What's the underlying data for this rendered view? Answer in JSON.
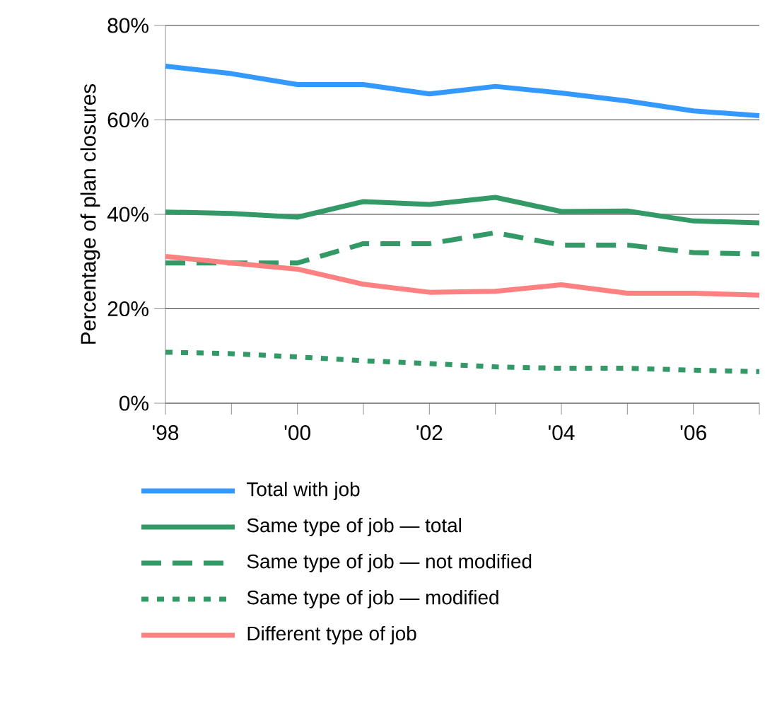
{
  "chart_data": {
    "type": "line",
    "ylabel": "Percentage of plan closures",
    "x": [
      1998,
      1999,
      2000,
      2001,
      2002,
      2003,
      2004,
      2005,
      2006,
      2007
    ],
    "series": [
      {
        "name": "Total with job",
        "color": "#3399ff",
        "line_style": "solid",
        "values": [
          71.4,
          69.8,
          67.5,
          67.5,
          65.5,
          67.1,
          65.7,
          64.0,
          61.9,
          60.9
        ]
      },
      {
        "name": "Same type of job — total",
        "color": "#339966",
        "line_style": "solid",
        "values": [
          40.5,
          40.2,
          39.4,
          42.7,
          42.1,
          43.6,
          40.6,
          40.7,
          38.6,
          38.2
        ]
      },
      {
        "name": "Same type of job — not modified",
        "color": "#339966",
        "line_style": "dashed",
        "values": [
          29.7,
          29.7,
          29.7,
          33.8,
          33.8,
          36.1,
          33.5,
          33.5,
          31.9,
          31.6
        ]
      },
      {
        "name": "Same type of job — modified",
        "color": "#339966",
        "line_style": "dotted",
        "values": [
          10.8,
          10.5,
          9.8,
          9.0,
          8.4,
          7.7,
          7.4,
          7.4,
          7.0,
          6.7
        ]
      },
      {
        "name": "Different type of job",
        "color": "#ff8080",
        "line_style": "solid",
        "values": [
          31.1,
          29.7,
          28.4,
          25.2,
          23.5,
          23.7,
          25.1,
          23.3,
          23.3,
          22.9
        ]
      }
    ],
    "xlim": [
      1998,
      2007
    ],
    "ylim": [
      0,
      80
    ],
    "xticks": [
      {
        "value": 1998,
        "label": "'98"
      },
      {
        "value": 1999,
        "label": null
      },
      {
        "value": 2000,
        "label": "'00"
      },
      {
        "value": 2001,
        "label": null
      },
      {
        "value": 2002,
        "label": "'02"
      },
      {
        "value": 2003,
        "label": null
      },
      {
        "value": 2004,
        "label": "'04"
      },
      {
        "value": 2005,
        "label": null
      },
      {
        "value": 2006,
        "label": "'06"
      },
      {
        "value": 2007,
        "label": null
      }
    ],
    "yticks": [
      {
        "value": 0,
        "label": "0%"
      },
      {
        "value": 20,
        "label": "20%"
      },
      {
        "value": 40,
        "label": "40%"
      },
      {
        "value": 60,
        "label": "60%"
      },
      {
        "value": 80,
        "label": "80%"
      }
    ],
    "grid": "y",
    "legend": "bottom"
  }
}
